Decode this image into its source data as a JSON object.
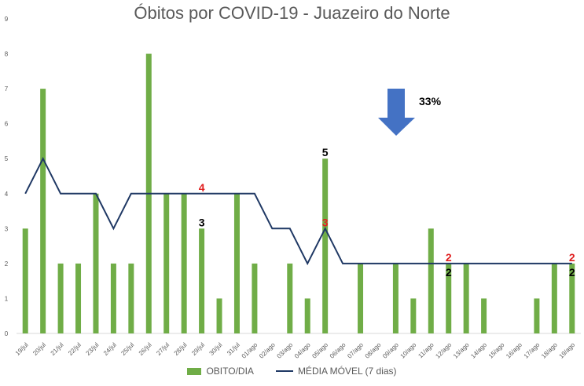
{
  "chart_data": {
    "type": "bar",
    "title": "Óbitos por COVID-19 - Juazeiro do Norte",
    "ylim": [
      0,
      9
    ],
    "yticks": [
      "0",
      "1",
      "2",
      "3",
      "4",
      "5",
      "6",
      "7",
      "8",
      "9"
    ],
    "categories": [
      "19/jul",
      "20/jul",
      "21/jul",
      "22/jul",
      "23/jul",
      "24/jul",
      "25/jul",
      "26/jul",
      "27/jul",
      "28/jul",
      "29/jul",
      "30/jul",
      "31/jul",
      "01/ago",
      "02/ago",
      "03/ago",
      "04/ago",
      "05/ago",
      "06/ago",
      "07/ago",
      "08/ago",
      "09/ago",
      "10/ago",
      "11/ago",
      "12/ago",
      "13/ago",
      "14/ago",
      "15/ago",
      "16/ago",
      "17/ago",
      "18/ago",
      "19/ago"
    ],
    "series": [
      {
        "name": "OBITO/DIA",
        "type": "bar",
        "color": "#70ad47",
        "values": [
          3,
          7,
          2,
          2,
          4,
          2,
          2,
          8,
          4,
          4,
          3,
          1,
          4,
          2,
          0,
          2,
          1,
          5,
          0,
          2,
          0,
          2,
          1,
          3,
          2,
          2,
          1,
          0,
          0,
          1,
          2,
          2
        ]
      },
      {
        "name": "MÉDIA MÓVEL (7 dias)",
        "type": "line",
        "color": "#1f3864",
        "values": [
          4,
          5,
          4,
          4,
          4,
          3,
          4,
          4,
          4,
          4,
          4,
          4,
          4,
          4,
          3,
          3,
          2,
          3,
          2,
          2,
          2,
          2,
          2,
          2,
          2,
          2,
          2,
          2,
          2,
          2,
          2,
          2
        ]
      }
    ],
    "annotations": [
      {
        "text": "4",
        "category": "29/jul",
        "y": 4,
        "color": "#e02020",
        "dy": -3
      },
      {
        "text": "3",
        "category": "29/jul",
        "y": 3,
        "color": "#000000",
        "dy": -3
      },
      {
        "text": "5",
        "category": "05/ago",
        "y": 5,
        "color": "#000000",
        "dy": -3
      },
      {
        "text": "3",
        "category": "05/ago",
        "y": 3,
        "color": "#e02020",
        "dy": -3
      },
      {
        "text": "2",
        "category": "12/ago",
        "y": 2,
        "color": "#e02020",
        "dy": -3
      },
      {
        "text": "2",
        "category": "12/ago",
        "y": 2,
        "color": "#000000",
        "dy": 16
      },
      {
        "text": "2",
        "category": "19/ago",
        "y": 2,
        "color": "#e02020",
        "dy": -3
      },
      {
        "text": "2",
        "category": "19/ago",
        "y": 2,
        "color": "#000000",
        "dy": 16
      }
    ],
    "percent_label": "33%",
    "arrow_color": "#4472c4",
    "legend_position": "bottom",
    "grid": false
  }
}
